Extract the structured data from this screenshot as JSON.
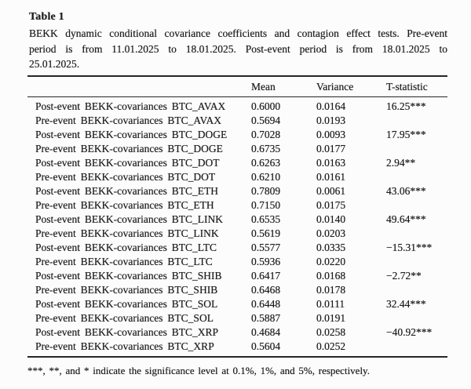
{
  "table": {
    "label": "Table 1",
    "caption_lines": [
      "BEKK dynamic conditional covariance coefficients and contagion effect tests. Pre-event",
      "period is from 11.01.2025 to 18.01.2025. Post-event period is from 18.01.2025 to",
      "25.01.2025."
    ],
    "header": {
      "row_label": "",
      "mean": "Mean",
      "variance": "Variance",
      "t_statistic": "T-statistic"
    },
    "rows": [
      {
        "label": "Post-event BEKK-covariances BTC_AVAX",
        "mean": "0.6000",
        "variance": "0.0164",
        "t_statistic": "16.25***"
      },
      {
        "label": "Pre-event BEKK-covariances BTC_AVAX",
        "mean": "0.5694",
        "variance": "0.0193",
        "t_statistic": ""
      },
      {
        "label": "Post-event BEKK-covariances BTC_DOGE",
        "mean": "0.7028",
        "variance": "0.0093",
        "t_statistic": "17.95***"
      },
      {
        "label": "Pre-event BEKK-covariances BTC_DOGE",
        "mean": "0.6735",
        "variance": "0.0177",
        "t_statistic": ""
      },
      {
        "label": "Post-event BEKK-covariances BTC_DOT",
        "mean": "0.6263",
        "variance": "0.0163",
        "t_statistic": "2.94**"
      },
      {
        "label": "Pre-event BEKK-covariances BTC_DOT",
        "mean": "0.6210",
        "variance": "0.0161",
        "t_statistic": ""
      },
      {
        "label": "Post-event BEKK-covariances BTC_ETH",
        "mean": "0.7809",
        "variance": "0.0061",
        "t_statistic": "43.06***"
      },
      {
        "label": "Pre-event BEKK-covariances BTC_ETH",
        "mean": "0.7150",
        "variance": "0.0175",
        "t_statistic": ""
      },
      {
        "label": "Post-event BEKK-covariances BTC_LINK",
        "mean": "0.6535",
        "variance": "0.0140",
        "t_statistic": "49.64***"
      },
      {
        "label": "Pre-event BEKK-covariances BTC_LINK",
        "mean": "0.5619",
        "variance": "0.0203",
        "t_statistic": ""
      },
      {
        "label": "Post-event BEKK-covariances BTC_LTC",
        "mean": "0.5577",
        "variance": "0.0335",
        "t_statistic": "−15.31***"
      },
      {
        "label": "Pre-event BEKK-covariances BTC_LTC",
        "mean": "0.5936",
        "variance": "0.0220",
        "t_statistic": ""
      },
      {
        "label": "Post-event BEKK-covariances BTC_SHIB",
        "mean": "0.6417",
        "variance": "0.0168",
        "t_statistic": "−2.72**"
      },
      {
        "label": "Pre-event BEKK-covariances BTC_SHIB",
        "mean": "0.6468",
        "variance": "0.0178",
        "t_statistic": ""
      },
      {
        "label": "Post-event BEKK-covariances BTC_SOL",
        "mean": "0.6448",
        "variance": "0.0111",
        "t_statistic": "32.44***"
      },
      {
        "label": "Pre-event BEKK-covariances BTC_SOL",
        "mean": "0.5887",
        "variance": "0.0191",
        "t_statistic": ""
      },
      {
        "label": "Post-event BEKK-covariances BTC_XRP",
        "mean": "0.4684",
        "variance": "0.0258",
        "t_statistic": "−40.92***"
      },
      {
        "label": "Pre-event BEKK-covariances BTC_XRP",
        "mean": "0.5604",
        "variance": "0.0252",
        "t_statistic": ""
      }
    ],
    "footnote": "***, **, and * indicate the significance level at 0.1%, 1%, and 5%, respectively."
  }
}
